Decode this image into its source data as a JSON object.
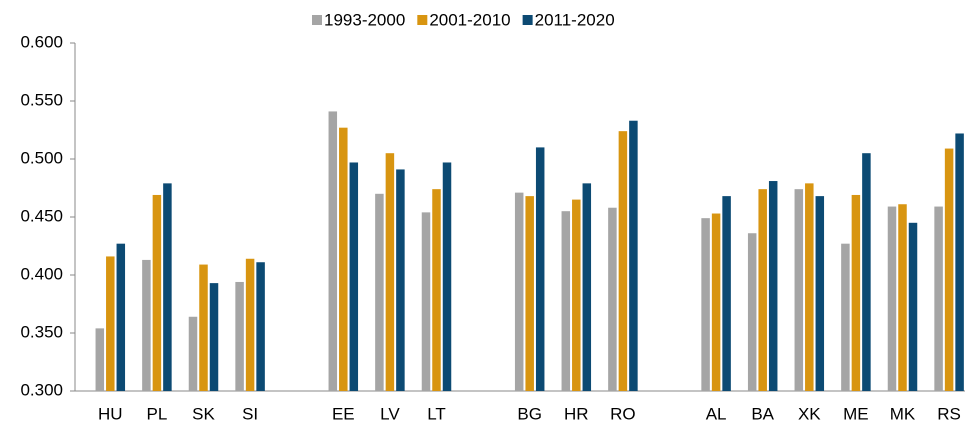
{
  "chart_data": {
    "type": "bar",
    "categories": [
      "HU",
      "PL",
      "SK",
      "SI",
      null,
      "EE",
      "LV",
      "LT",
      null,
      "BG",
      "HR",
      "RO",
      null,
      "AL",
      "BA",
      "XK",
      "ME",
      "MK",
      "RS"
    ],
    "series": [
      {
        "name": "1993-2000",
        "color": "#a5a5a5",
        "values": [
          0.354,
          0.413,
          0.364,
          0.394,
          null,
          0.541,
          0.47,
          0.454,
          null,
          0.471,
          0.455,
          0.458,
          null,
          0.449,
          0.436,
          0.474,
          0.427,
          0.459,
          0.459
        ]
      },
      {
        "name": "2001-2010",
        "color": "#d89511",
        "values": [
          0.416,
          0.469,
          0.409,
          0.414,
          null,
          0.527,
          0.505,
          0.474,
          null,
          0.468,
          0.465,
          0.524,
          null,
          0.453,
          0.474,
          0.479,
          0.469,
          0.461,
          0.509
        ]
      },
      {
        "name": "2011-2020",
        "color": "#0c4a73",
        "values": [
          0.427,
          0.479,
          0.393,
          0.411,
          null,
          0.497,
          0.491,
          0.497,
          null,
          0.51,
          0.479,
          0.533,
          null,
          0.468,
          0.481,
          0.468,
          0.505,
          0.445,
          0.522
        ]
      }
    ],
    "ylim": [
      0.3,
      0.6
    ],
    "yticks": [
      {
        "value": 0.3,
        "label": "0.300"
      },
      {
        "value": 0.35,
        "label": "0.350"
      },
      {
        "value": 0.4,
        "label": "0.400"
      },
      {
        "value": 0.45,
        "label": "0.450"
      },
      {
        "value": 0.5,
        "label": "0.500"
      },
      {
        "value": 0.55,
        "label": "0.550"
      },
      {
        "value": 0.6,
        "label": "0.600"
      }
    ],
    "legend": "top"
  }
}
